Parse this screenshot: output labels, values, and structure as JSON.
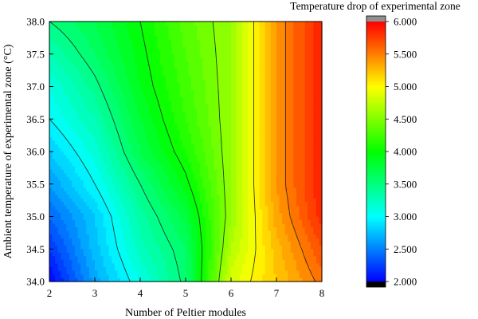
{
  "chart_data": {
    "type": "heatmap",
    "subtype": "filled-contour",
    "xlabel": "Number of Peltier modules",
    "ylabel": "Ambient temperature of experimental zone (°C)",
    "colorbar_title": "Temperature drop of experimental zone",
    "x": [
      2,
      3,
      4,
      5,
      6,
      7,
      8
    ],
    "y": [
      34.0,
      34.5,
      35.0,
      35.5,
      36.0,
      36.5,
      37.0,
      37.5,
      38.0
    ],
    "z": [
      [
        2.0,
        2.65,
        3.1,
        3.55,
        4.85,
        5.2,
        5.55
      ],
      [
        2.2,
        2.75,
        3.25,
        3.6,
        4.7,
        5.25,
        5.7
      ],
      [
        2.4,
        2.8,
        3.35,
        3.75,
        4.6,
        5.35,
        5.85
      ],
      [
        2.6,
        3.0,
        3.5,
        3.95,
        4.6,
        5.4,
        5.9
      ],
      [
        2.8,
        3.15,
        3.7,
        4.1,
        4.6,
        5.4,
        5.9
      ],
      [
        3.0,
        3.3,
        3.8,
        4.2,
        4.6,
        5.4,
        5.9
      ],
      [
        3.1,
        3.45,
        3.9,
        4.25,
        4.6,
        5.4,
        5.9
      ],
      [
        3.3,
        3.6,
        3.95,
        4.3,
        4.6,
        5.4,
        5.9
      ],
      [
        3.5,
        3.7,
        4.0,
        4.35,
        4.6,
        5.4,
        5.9
      ]
    ],
    "xlim": [
      2,
      8
    ],
    "ylim": [
      34.0,
      38.0
    ],
    "x_ticks": [
      "2",
      "3",
      "4",
      "5",
      "6",
      "7",
      "8"
    ],
    "y_ticks": [
      "34.0",
      "34.5",
      "35.0",
      "35.5",
      "36.0",
      "36.5",
      "37.0",
      "37.5",
      "38.0"
    ],
    "colorbar_ticks": [
      "2.000",
      "2.500",
      "3.000",
      "3.500",
      "4.000",
      "4.500",
      "5.000",
      "5.500",
      "6.000"
    ],
    "colorbar_range": [
      2.0,
      6.0
    ],
    "contour_levels": [
      3.0,
      3.5,
      4.0,
      4.5,
      5.0,
      5.5
    ],
    "colormap": [
      "#000000",
      "#0000ff",
      "#00ffff",
      "#00ff00",
      "#ffff00",
      "#ff0000",
      "#909090"
    ]
  }
}
